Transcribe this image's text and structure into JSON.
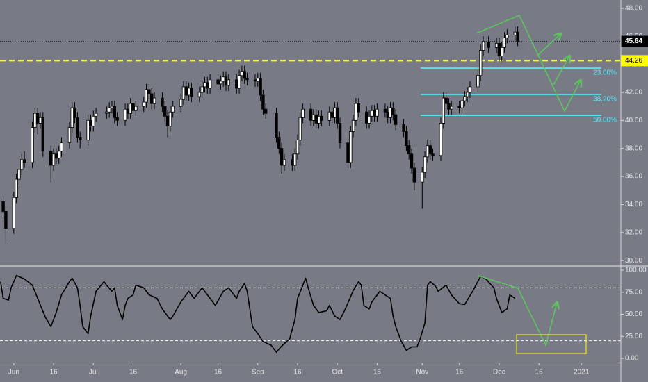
{
  "chart_data": [
    {
      "type": "candlestick",
      "x": [
        -4,
        -3,
        0,
        1,
        2,
        3,
        4,
        7,
        8,
        9,
        10,
        11,
        14,
        15,
        16,
        17,
        18,
        21,
        22,
        23,
        24,
        25,
        28,
        29,
        30,
        31,
        35,
        36,
        37,
        38,
        39,
        42,
        43,
        44,
        45,
        46,
        49,
        50,
        51,
        52,
        53,
        56,
        57,
        58,
        59,
        60,
        63,
        64,
        65,
        66,
        67,
        70,
        71,
        72,
        73,
        74,
        77,
        78,
        79,
        80,
        81,
        84,
        85,
        86,
        87,
        88,
        91,
        92,
        93,
        94,
        95,
        99,
        100,
        101,
        102,
        105,
        106,
        107,
        108,
        109,
        112,
        113,
        114,
        115,
        116,
        119,
        120,
        121,
        122,
        123,
        126,
        127,
        128,
        129,
        130,
        133,
        134,
        135,
        136,
        137,
        140,
        141,
        142,
        143,
        144,
        147,
        148,
        149,
        150,
        151,
        154,
        155,
        156,
        157,
        158,
        161,
        162,
        163,
        164,
        165,
        168,
        169,
        170,
        171,
        172,
        175,
        176,
        177,
        179,
        182,
        183,
        184,
        185,
        186,
        189,
        190
      ],
      "open": [
        34.2,
        33.5,
        32.3,
        34.5,
        35.8,
        36.5,
        37.2,
        37.0,
        39.5,
        40.5,
        39.8,
        40.2,
        37.8,
        36.8,
        37.6,
        37.3,
        37.8,
        38.4,
        39.5,
        40.9,
        40.2,
        38.8,
        38.6,
        40.0,
        39.6,
        40.3,
        40.5,
        40.6,
        40.9,
        41.0,
        40.2,
        40.0,
        40.8,
        40.5,
        41.2,
        40.7,
        41.0,
        41.3,
        42.2,
        41.9,
        41.2,
        41.6,
        41.0,
        40.3,
        39.6,
        40.6,
        41.0,
        41.5,
        42.4,
        41.8,
        42.3,
        41.7,
        42.0,
        42.4,
        42.7,
        42.3,
        42.9,
        42.6,
        42.8,
        43.1,
        42.5,
        42.9,
        42.3,
        43.2,
        43.5,
        43.0,
        42.9,
        42.8,
        43.0,
        41.8,
        40.8,
        40.5,
        38.8,
        38.0,
        36.8,
        37.2,
        36.8,
        37.6,
        38.6,
        40.2,
        40.8,
        40.0,
        40.4,
        39.8,
        40.3,
        40.0,
        40.6,
        40.2,
        40.9,
        39.8,
        38.4,
        37.0,
        39.2,
        40.0,
        41.2,
        40.6,
        39.8,
        40.3,
        40.7,
        40.3,
        40.8,
        40.6,
        40.2,
        40.9,
        40.4,
        39.7,
        39.2,
        38.2,
        37.6,
        36.6,
        35.6,
        36.3,
        37.4,
        38.2,
        37.6,
        37.5,
        39.8,
        41.6,
        41.2,
        40.8,
        41.0,
        40.9,
        41.4,
        41.7,
        42.0,
        42.4,
        43.2,
        45.0,
        45.6,
        45.2,
        45.5,
        44.6,
        45.2,
        45.9,
        46.1,
        46.3
      ],
      "high": [
        34.6,
        33.9,
        34.9,
        36.2,
        36.9,
        37.6,
        37.8,
        39.9,
        40.9,
        40.9,
        40.6,
        40.6,
        38.2,
        38.0,
        38.0,
        38.2,
        38.8,
        39.9,
        41.3,
        41.3,
        40.6,
        39.2,
        40.4,
        40.4,
        40.7,
        40.9,
        41.0,
        41.3,
        41.4,
        41.4,
        40.6,
        41.2,
        41.2,
        41.6,
        41.6,
        41.4,
        41.7,
        42.6,
        42.6,
        42.3,
        42.0,
        42.0,
        41.4,
        40.7,
        41.0,
        41.4,
        41.9,
        42.8,
        42.8,
        42.7,
        42.7,
        42.4,
        42.8,
        43.1,
        43.1,
        43.3,
        43.3,
        43.2,
        43.5,
        43.5,
        43.3,
        43.3,
        43.6,
        43.9,
        43.9,
        43.4,
        43.3,
        43.4,
        43.4,
        42.2,
        41.2,
        40.9,
        39.2,
        38.4,
        37.6,
        37.6,
        38.0,
        39.0,
        40.6,
        41.2,
        41.2,
        40.8,
        40.8,
        40.7,
        40.7,
        41.0,
        41.0,
        41.3,
        41.3,
        40.2,
        38.8,
        39.6,
        40.4,
        41.6,
        41.6,
        41.0,
        40.7,
        41.1,
        41.1,
        41.2,
        41.2,
        41.0,
        41.3,
        41.3,
        40.8,
        40.1,
        39.6,
        38.6,
        38.0,
        37.0,
        36.7,
        37.8,
        38.6,
        38.6,
        38.0,
        40.2,
        42.0,
        42.0,
        41.6,
        41.4,
        41.4,
        41.8,
        42.1,
        42.4,
        42.8,
        43.6,
        45.4,
        46.0,
        46.0,
        45.9,
        45.9,
        45.6,
        46.3,
        46.5,
        46.7,
        46.7
      ],
      "low": [
        33.0,
        31.2,
        31.9,
        34.1,
        35.4,
        36.1,
        36.6,
        36.6,
        39.1,
        39.0,
        39.4,
        37.4,
        35.6,
        36.4,
        36.9,
        36.9,
        37.4,
        38.0,
        39.1,
        39.8,
        38.4,
        38.0,
        38.2,
        39.2,
        39.2,
        39.9,
        40.1,
        40.2,
        40.5,
        39.8,
        39.6,
        39.6,
        40.1,
        40.1,
        40.3,
        40.3,
        40.6,
        40.9,
        41.5,
        40.8,
        40.8,
        40.6,
        39.9,
        38.8,
        39.2,
        40.2,
        40.6,
        41.1,
        41.4,
        41.4,
        41.3,
        41.3,
        41.6,
        42.0,
        41.9,
        41.9,
        42.2,
        42.2,
        42.4,
        42.1,
        42.1,
        41.9,
        41.9,
        42.8,
        42.6,
        42.5,
        42.4,
        42.4,
        41.4,
        40.4,
        40.1,
        38.4,
        37.6,
        36.2,
        36.4,
        36.4,
        36.4,
        37.2,
        38.2,
        39.8,
        39.6,
        39.6,
        39.4,
        39.4,
        39.6,
        39.6,
        39.8,
        39.8,
        39.4,
        38.0,
        36.6,
        36.6,
        38.8,
        39.6,
        40.2,
        39.4,
        39.4,
        39.9,
        39.9,
        39.9,
        40.2,
        39.8,
        39.8,
        40.0,
        39.3,
        38.8,
        37.8,
        37.2,
        36.2,
        35.0,
        33.7,
        35.9,
        37.0,
        37.2,
        37.1,
        37.1,
        39.4,
        40.8,
        40.4,
        40.4,
        40.5,
        40.5,
        41.0,
        41.3,
        41.6,
        42.0,
        42.8,
        44.6,
        44.8,
        44.8,
        44.2,
        44.2,
        44.8,
        45.5,
        45.7,
        45.3
      ],
      "close": [
        33.5,
        32.3,
        34.5,
        35.8,
        36.5,
        37.2,
        37.0,
        39.5,
        40.5,
        39.8,
        40.2,
        37.8,
        36.8,
        37.6,
        37.3,
        37.8,
        38.4,
        39.5,
        40.9,
        40.2,
        38.8,
        38.6,
        40.0,
        39.6,
        40.3,
        40.5,
        40.6,
        40.9,
        41.0,
        40.2,
        40.0,
        40.8,
        40.5,
        41.2,
        40.7,
        41.0,
        41.3,
        42.2,
        41.9,
        41.2,
        41.6,
        41.0,
        40.3,
        39.6,
        40.6,
        41.0,
        41.5,
        42.4,
        41.8,
        42.3,
        41.7,
        42.0,
        42.4,
        42.7,
        42.3,
        42.9,
        42.6,
        42.8,
        43.1,
        42.5,
        42.9,
        42.3,
        43.2,
        43.5,
        43.0,
        42.9,
        42.8,
        43.0,
        41.8,
        40.8,
        40.5,
        38.8,
        38.0,
        36.8,
        37.2,
        36.8,
        37.6,
        38.6,
        40.2,
        40.8,
        40.0,
        40.4,
        39.8,
        40.3,
        40.0,
        40.6,
        40.2,
        40.9,
        39.8,
        38.4,
        37.0,
        39.2,
        40.0,
        41.2,
        40.6,
        39.8,
        40.3,
        40.7,
        40.3,
        40.8,
        40.6,
        40.2,
        40.9,
        40.4,
        39.7,
        39.2,
        38.2,
        37.6,
        36.6,
        35.6,
        36.3,
        37.4,
        38.2,
        37.6,
        37.5,
        39.8,
        41.6,
        41.2,
        40.8,
        41.0,
        40.9,
        41.4,
        41.7,
        42.0,
        42.4,
        43.2,
        45.0,
        45.6,
        45.2,
        45.5,
        44.6,
        45.2,
        45.9,
        46.1,
        46.3,
        45.64
      ],
      "up_color": "#ffffff",
      "down_color": "#000000",
      "xlim": [
        -5.2,
        228.9
      ],
      "ylim": [
        29.66,
        48.59
      ],
      "yticks": [
        {
          "value": 30,
          "label": "30.00"
        },
        {
          "value": 32,
          "label": "32.00"
        },
        {
          "value": 34,
          "label": "34.00"
        },
        {
          "value": 36,
          "label": "36.00"
        },
        {
          "value": 38,
          "label": "38.00"
        },
        {
          "value": 40,
          "label": "40.00"
        },
        {
          "value": 42,
          "label": "42.00"
        },
        {
          "value": 46,
          "label": "46.00"
        },
        {
          "value": 48,
          "label": "48.00"
        }
      ],
      "price_line": {
        "value": 44.26,
        "color": "#ffff00"
      },
      "last_price_line": true,
      "fib_levels": [
        {
          "label": "23.60%",
          "value": 43.73
        },
        {
          "label": "38.20%",
          "value": 41.85
        },
        {
          "label": "50.00%",
          "value": 40.36
        }
      ],
      "fib_color": "#4ff0ff"
    },
    {
      "type": "line",
      "x": [
        -5,
        -4,
        -2,
        -1,
        1,
        4,
        7,
        9,
        12,
        14,
        16,
        18,
        21,
        22,
        24,
        25,
        26,
        28,
        29,
        31,
        34,
        35,
        37,
        38,
        39,
        41,
        42,
        43,
        45,
        46,
        49,
        51,
        54,
        56,
        59,
        60,
        63,
        66,
        68,
        71,
        73,
        76,
        79,
        81,
        84,
        85,
        87,
        88,
        89,
        90,
        92,
        94,
        97,
        99,
        101,
        104,
        106,
        107,
        109,
        110,
        111,
        113,
        115,
        118,
        119,
        121,
        123,
        125,
        128,
        130,
        131,
        132,
        134,
        135,
        138,
        140,
        142,
        143,
        144,
        146,
        148,
        150,
        152,
        153,
        155,
        156,
        157,
        159,
        160,
        163,
        165,
        168,
        170,
        173,
        176,
        178,
        181,
        182,
        184,
        186,
        187,
        189
      ],
      "values": [
        87,
        68,
        66,
        80,
        94,
        90,
        83,
        68,
        46,
        36,
        52,
        72,
        87,
        91,
        80,
        60,
        36,
        28,
        48,
        76,
        87,
        83,
        76,
        80,
        60,
        44,
        60,
        68,
        72,
        83,
        80,
        72,
        68,
        56,
        44,
        48,
        64,
        76,
        68,
        80,
        72,
        60,
        76,
        80,
        68,
        76,
        85,
        76,
        56,
        36,
        28,
        19,
        15,
        7,
        14,
        22,
        44,
        68,
        83,
        91,
        80,
        60,
        52,
        54,
        60,
        48,
        44,
        56,
        77,
        87,
        83,
        60,
        56,
        64,
        76,
        72,
        68,
        48,
        36,
        20,
        9,
        13,
        13,
        20,
        40,
        83,
        87,
        82,
        76,
        83,
        72,
        62,
        61,
        76,
        93,
        90,
        80,
        68,
        52,
        56,
        72,
        68
      ],
      "color": "#000000",
      "xlim": [
        -5.2,
        228.9
      ],
      "ylim": [
        -4.7,
        103.9
      ],
      "yticks": [
        {
          "value": 0,
          "label": "0.00"
        },
        {
          "value": 25,
          "label": "25.00"
        },
        {
          "value": 50,
          "label": "50.00"
        },
        {
          "value": 75,
          "label": "75.00"
        },
        {
          "value": 100,
          "label": "100.00"
        }
      ],
      "bands": [
        80,
        20
      ],
      "xticks": [
        {
          "value": 0,
          "label": "Jun"
        },
        {
          "value": 15,
          "label": "16"
        },
        {
          "value": 30,
          "label": "Jul"
        },
        {
          "value": 45,
          "label": "16"
        },
        {
          "value": 63,
          "label": "Aug"
        },
        {
          "value": 77,
          "label": "16"
        },
        {
          "value": 92,
          "label": "Sep"
        },
        {
          "value": 107,
          "label": "16"
        },
        {
          "value": 122,
          "label": "Oct"
        },
        {
          "value": 137,
          "label": "16"
        },
        {
          "value": 154,
          "label": "Nov"
        },
        {
          "value": 168,
          "label": "16"
        },
        {
          "value": 183,
          "label": "Dec"
        },
        {
          "value": 198,
          "label": "16"
        },
        {
          "value": 214,
          "label": "2021"
        }
      ]
    }
  ]
}
